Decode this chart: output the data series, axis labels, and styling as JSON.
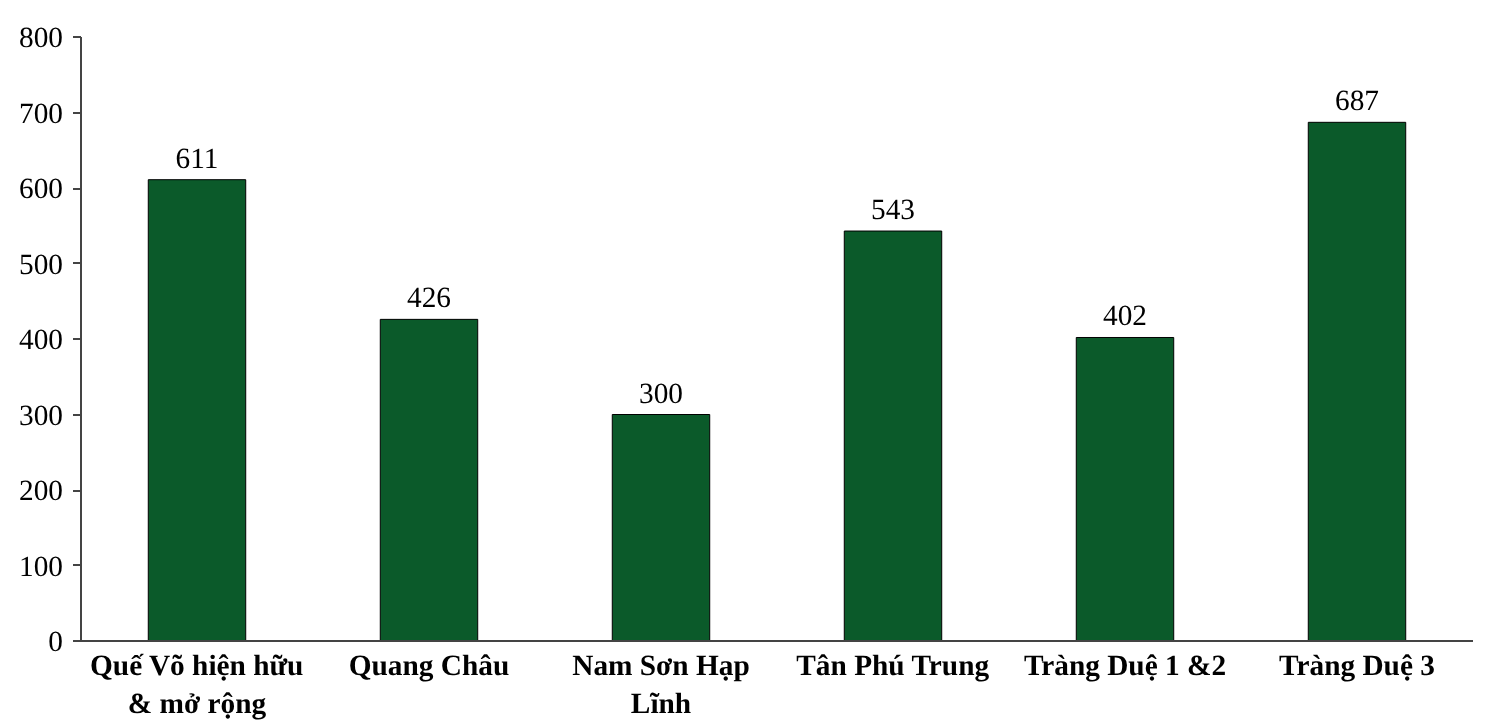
{
  "chart_data": {
    "type": "bar",
    "categories": [
      "Quế Võ hiện hữu & mở rộng",
      "Quang Châu",
      "Nam Sơn Hạp Lĩnh",
      "Tân Phú Trung",
      "Tràng Duệ 1 &2",
      "Tràng Duệ 3"
    ],
    "values": [
      611,
      426,
      300,
      543,
      402,
      687
    ],
    "color": "#0b5a2a",
    "ylim": [
      0,
      800
    ],
    "yticks": [
      0,
      100,
      200,
      300,
      400,
      500,
      600,
      700,
      800
    ],
    "data_labels": true,
    "grid": false
  }
}
